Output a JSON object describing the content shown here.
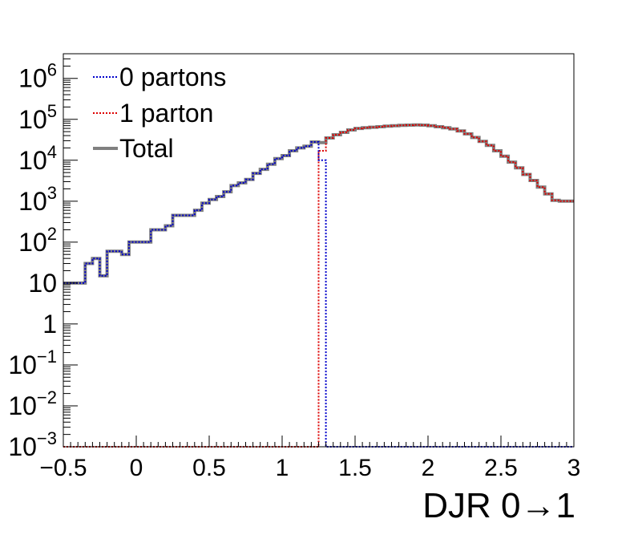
{
  "chart_data": {
    "type": "line",
    "step": true,
    "title": "",
    "xlabel": "DJR 0→1",
    "ylabel": "",
    "xlim": [
      -0.5,
      3
    ],
    "ylim": [
      0.001,
      4000000
    ],
    "yscale": "log",
    "grid": false,
    "legend_position": "top-left",
    "x_ticks": [
      -0.5,
      0,
      0.5,
      1,
      1.5,
      2,
      2.5,
      3
    ],
    "x_tick_labels": [
      "−0.5",
      "0",
      "0.5",
      "1",
      "1.5",
      "2",
      "2.5",
      "3"
    ],
    "y_ticks": [
      0.001,
      0.01,
      0.1,
      1,
      10,
      100,
      1000,
      10000,
      100000,
      1000000
    ],
    "y_tick_labels": [
      {
        "base": "10",
        "exp": "−3"
      },
      {
        "base": "10",
        "exp": "−2"
      },
      {
        "base": "10",
        "exp": "−1"
      },
      {
        "base": "1",
        "exp": ""
      },
      {
        "base": "10",
        "exp": ""
      },
      {
        "base": "10",
        "exp": "2"
      },
      {
        "base": "10",
        "exp": "3"
      },
      {
        "base": "10",
        "exp": "4"
      },
      {
        "base": "10",
        "exp": "5"
      },
      {
        "base": "10",
        "exp": "6"
      }
    ],
    "bin_edges": [
      -0.5,
      -0.45,
      -0.4,
      -0.35,
      -0.3,
      -0.25,
      -0.2,
      -0.15,
      -0.1,
      -0.05,
      0,
      0.05,
      0.1,
      0.15,
      0.2,
      0.25,
      0.3,
      0.35,
      0.4,
      0.45,
      0.5,
      0.55,
      0.6,
      0.65,
      0.7,
      0.75,
      0.8,
      0.85,
      0.9,
      0.95,
      1,
      1.05,
      1.1,
      1.15,
      1.2,
      1.25,
      1.3,
      1.35,
      1.4,
      1.45,
      1.5,
      1.55,
      1.6,
      1.65,
      1.7,
      1.75,
      1.8,
      1.85,
      1.9,
      1.95,
      2,
      2.05,
      2.1,
      2.15,
      2.2,
      2.25,
      2.3,
      2.35,
      2.4,
      2.45,
      2.5,
      2.55,
      2.6,
      2.65,
      2.7,
      2.75,
      2.8,
      2.85,
      2.9,
      2.95,
      3
    ],
    "series": [
      {
        "name": "0 partons",
        "color": "#0000cc",
        "style": "dotted",
        "values": [
          10,
          10,
          10,
          30,
          40,
          15,
          60,
          60,
          50,
          100,
          100,
          100,
          200,
          200,
          250,
          450,
          450,
          450,
          600,
          900,
          1100,
          1300,
          1700,
          2400,
          2800,
          3400,
          4800,
          6000,
          8000,
          11000,
          13000,
          17000,
          20000,
          22000,
          28000,
          10000,
          0.001,
          0.001,
          0.001,
          0.001,
          0.001,
          0.001,
          0.001,
          0.001,
          0.001,
          0.001,
          0.001,
          0.001,
          0.001,
          0.001,
          0.001,
          0.001,
          0.001,
          0.001,
          0.001,
          0.001,
          0.001,
          0.001,
          0.001,
          0.001,
          0.001,
          0.001,
          0.001,
          0.001,
          0.001,
          0.001,
          0.001,
          0.001,
          0.001,
          0.001
        ]
      },
      {
        "name": "1 parton",
        "color": "#dd0000",
        "style": "dotted",
        "values": [
          0.001,
          0.001,
          0.001,
          0.001,
          0.001,
          0.001,
          0.001,
          0.001,
          0.001,
          0.001,
          0.001,
          0.001,
          0.001,
          0.001,
          0.001,
          0.001,
          0.001,
          0.001,
          0.001,
          0.001,
          0.001,
          0.001,
          0.001,
          0.001,
          0.001,
          0.001,
          0.001,
          0.001,
          0.001,
          0.001,
          0.001,
          0.001,
          0.001,
          0.001,
          0.001,
          17000,
          35000,
          42000,
          48000,
          55000,
          60000,
          62000,
          64000,
          66000,
          68000,
          70000,
          71000,
          72000,
          73000,
          72000,
          70000,
          66000,
          62000,
          58000,
          52000,
          44000,
          36000,
          29000,
          23000,
          17000,
          12500,
          9000,
          6500,
          4500,
          3200,
          2200,
          1500,
          1050,
          1000,
          1000
        ]
      },
      {
        "name": "Total",
        "color": "#808080",
        "style": "solid",
        "values": [
          10,
          10,
          10,
          30,
          40,
          15,
          60,
          60,
          50,
          100,
          100,
          100,
          200,
          200,
          250,
          450,
          450,
          450,
          600,
          900,
          1100,
          1300,
          1700,
          2400,
          2800,
          3400,
          4800,
          6000,
          8000,
          11000,
          13000,
          17000,
          20000,
          22000,
          28000,
          27000,
          35000,
          42000,
          48000,
          55000,
          60000,
          62000,
          64000,
          66000,
          68000,
          70000,
          71000,
          72000,
          73000,
          72000,
          70000,
          66000,
          62000,
          58000,
          52000,
          44000,
          36000,
          29000,
          23000,
          17000,
          12500,
          9000,
          6500,
          4500,
          3200,
          2200,
          1500,
          1050,
          1000,
          1000
        ]
      }
    ]
  }
}
